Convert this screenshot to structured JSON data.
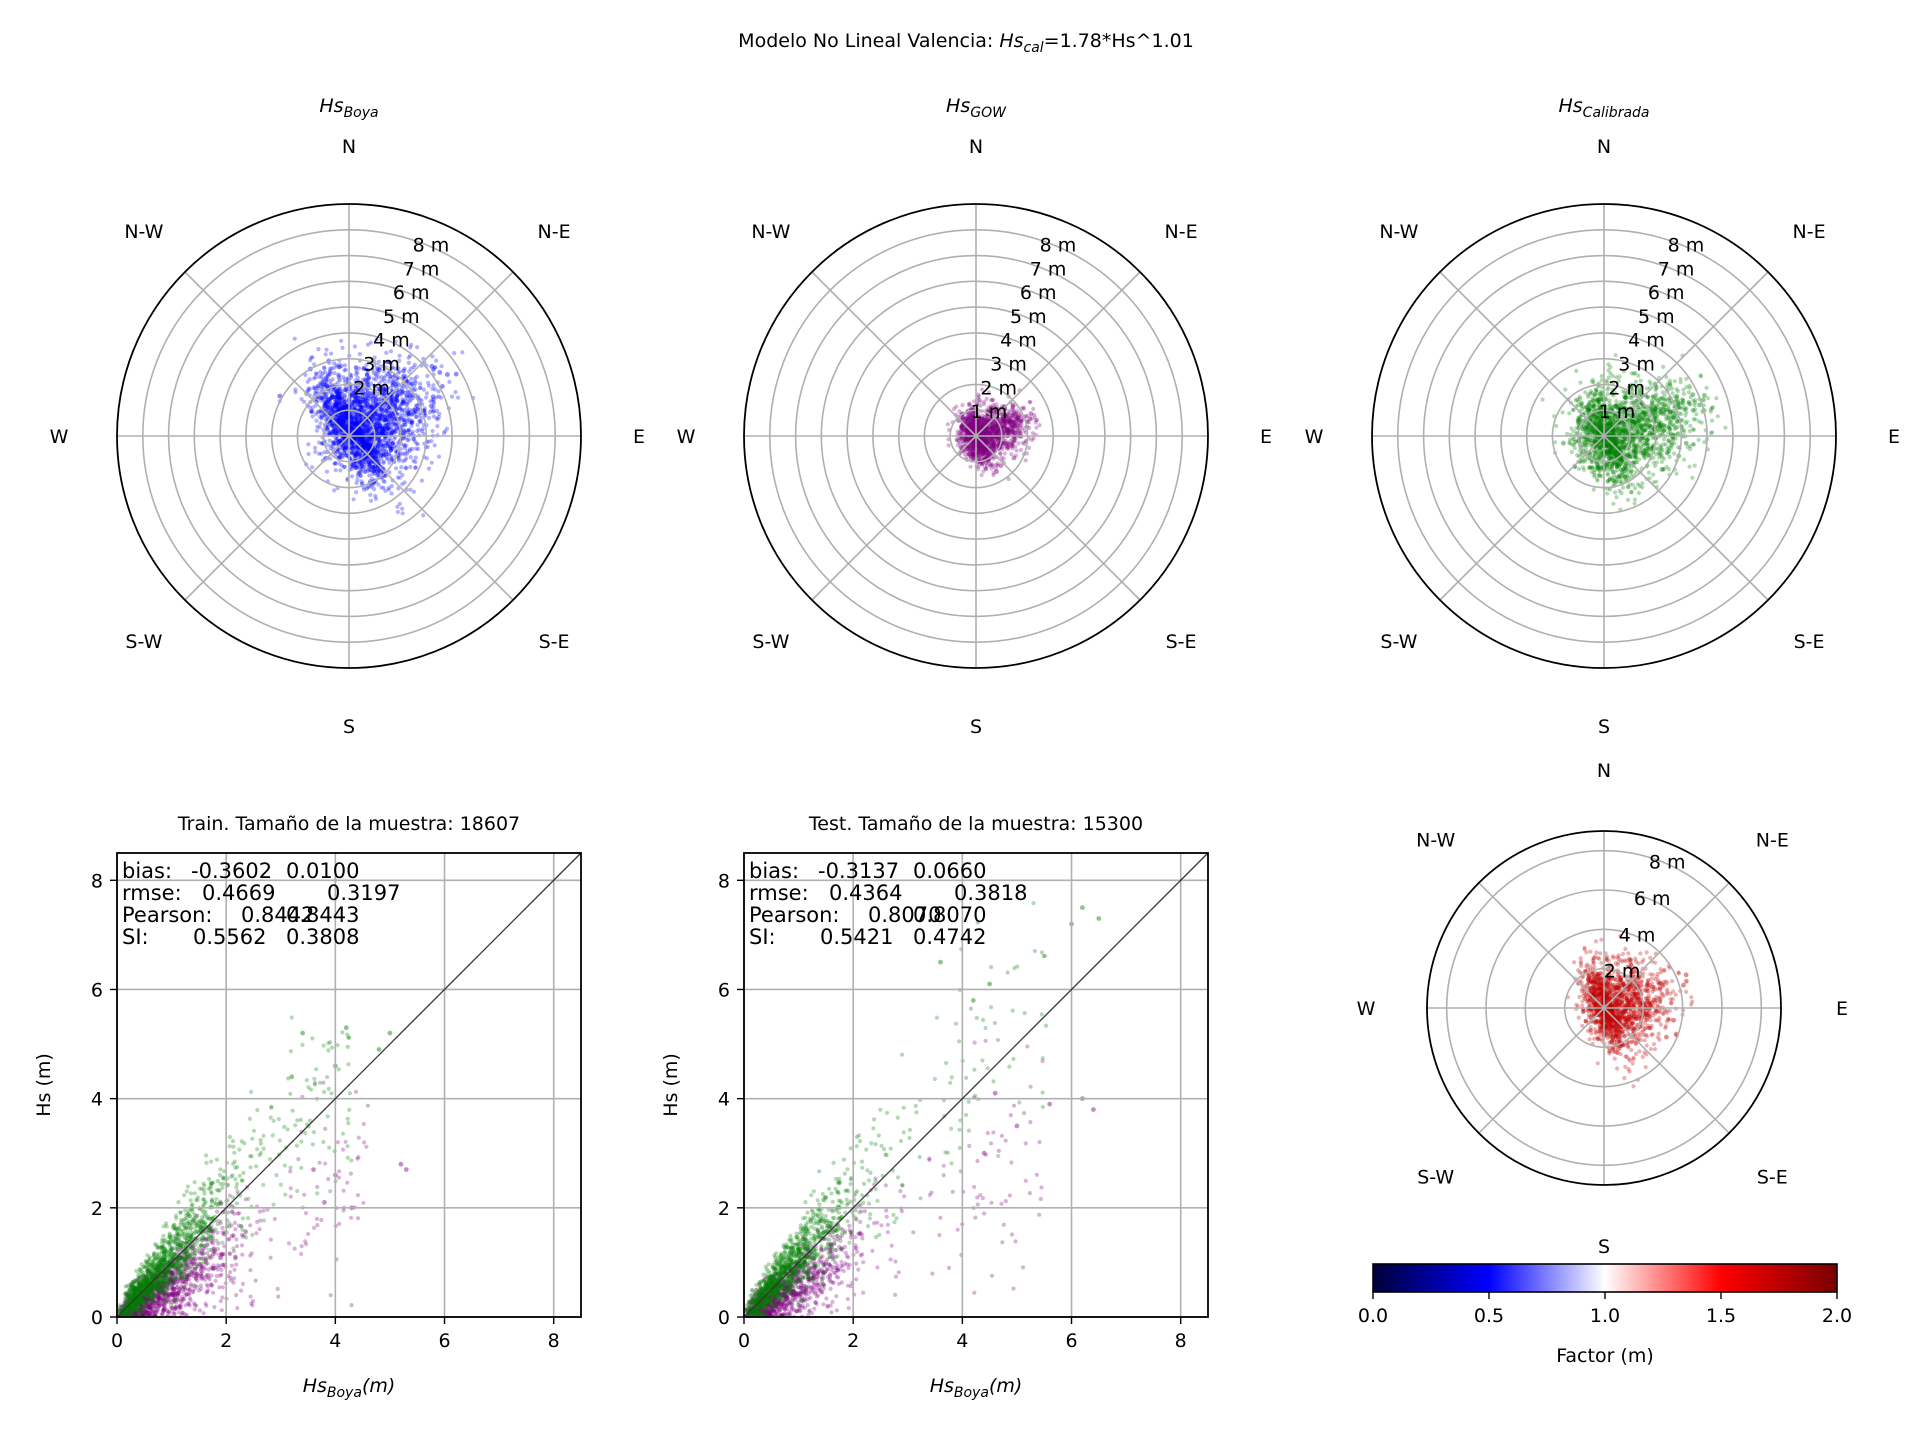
{
  "figure": {
    "title_prefix": "Modelo No Lineal Valencia: ",
    "title_var": "Hs",
    "title_sub": "cal",
    "title_suffix": "=1.78*Hs^1.01"
  },
  "compass": [
    "N",
    "N-E",
    "E",
    "S-E",
    "S",
    "S-W",
    "W",
    "N-W"
  ],
  "colors": {
    "boya": "#0000ff",
    "gow": "#800080",
    "calibrada": "#008000",
    "factor": "#c00000",
    "grid": "#b0b0b0",
    "diag": "#333333"
  },
  "chart_data": [
    {
      "type": "scatter",
      "panel": "polar-boya",
      "projection": "polar",
      "title_var": "Hs",
      "title_sub": "Boya",
      "rlim": [
        0,
        9
      ],
      "r_ticks": [
        1,
        2,
        3,
        4,
        5,
        6,
        7,
        8
      ],
      "r_tick_labels": [
        "",
        "2 m",
        "3 m",
        "4 m",
        "5 m",
        "6 m",
        "7 m",
        "8 m"
      ],
      "color": "#0000ff",
      "cloud": {
        "center_dir_deg": 45,
        "offset_m": 0.55,
        "spread_r": 1.55,
        "spread_t": 1.15,
        "tail_dir_deg": 60,
        "tail_max_m": 5.0,
        "n": 2600
      },
      "points": [
        [
          60,
          4.8
        ],
        [
          58,
          4.5
        ],
        [
          55,
          4.3
        ],
        [
          62,
          4.1
        ],
        [
          50,
          4.2
        ],
        [
          65,
          3.6
        ],
        [
          40,
          3.3
        ],
        [
          70,
          3.4
        ],
        [
          300,
          3.1
        ],
        [
          330,
          3.0
        ]
      ]
    },
    {
      "type": "scatter",
      "panel": "polar-gow",
      "projection": "polar",
      "title_var": "Hs",
      "title_sub": "GOW",
      "rlim": [
        0,
        9
      ],
      "r_ticks": [
        1,
        2,
        3,
        4,
        5,
        6,
        7,
        8
      ],
      "r_tick_labels": [
        "1 m",
        "2 m",
        "3 m",
        "4 m",
        "5 m",
        "6 m",
        "7 m",
        "8 m"
      ],
      "color": "#800080",
      "cloud": {
        "center_dir_deg": 80,
        "offset_m": 0.25,
        "spread_r": 0.95,
        "spread_t": 0.55,
        "tail_dir_deg": 72,
        "tail_max_m": 2.3,
        "n": 1600
      },
      "points": [
        [
          68,
          2.3
        ],
        [
          72,
          2.2
        ],
        [
          75,
          2.1
        ],
        [
          120,
          1.7
        ],
        [
          150,
          1.6
        ],
        [
          140,
          1.5
        ]
      ]
    },
    {
      "type": "scatter",
      "panel": "polar-calibrada",
      "projection": "polar",
      "title_var": "Hs",
      "title_sub": "Calibrada",
      "rlim": [
        0,
        9
      ],
      "r_ticks": [
        1,
        2,
        3,
        4,
        5,
        6,
        7,
        8
      ],
      "r_tick_labels": [
        "1 m",
        "2 m",
        "3 m",
        "4 m",
        "5 m",
        "6 m",
        "7 m",
        "8 m"
      ],
      "color": "#008000",
      "cloud": {
        "center_dir_deg": 80,
        "offset_m": 0.45,
        "spread_r": 1.7,
        "spread_t": 0.95,
        "tail_dir_deg": 72,
        "tail_max_m": 4.2,
        "n": 2000
      },
      "points": [
        [
          72,
          3.9
        ],
        [
          70,
          4.1
        ],
        [
          68,
          4.2
        ],
        [
          65,
          3.8
        ],
        [
          74,
          3.6
        ],
        [
          105,
          3.0
        ],
        [
          120,
          2.6
        ],
        [
          95,
          3.2
        ],
        [
          260,
          1.6
        ],
        [
          350,
          1.4
        ]
      ]
    },
    {
      "type": "scatter",
      "panel": "scatter-train",
      "title": "Train. Tamaño de la muestra: 18607",
      "xlabel_var": "Hs",
      "xlabel_sub": "Boya",
      "xlabel_suffix": "(m)",
      "ylabel": "Hs (m)",
      "xlim": [
        0,
        8.5
      ],
      "ylim": [
        0,
        8.5
      ],
      "xticks": [
        0,
        2,
        4,
        6,
        8
      ],
      "yticks": [
        0,
        2,
        4,
        6,
        8
      ],
      "grid": true,
      "diagonal": true,
      "stats": [
        {
          "label": "bias:",
          "gow": "-0.3602",
          "cal": "0.0100"
        },
        {
          "label": "rmse:",
          "gow": "0.4669",
          "cal": "0.3197"
        },
        {
          "label": "Pearson:",
          "gow": "0.8442",
          "cal": "0.8443"
        },
        {
          "label": "SI:",
          "gow": "0.5562",
          "cal": "0.3808"
        }
      ],
      "series": [
        {
          "color": "#800080",
          "slope": 0.58,
          "x_max": 5.4,
          "n": 1300,
          "points": [
            [
              5.3,
              2.7
            ],
            [
              5.2,
              2.8
            ],
            [
              4.0,
              2.6
            ],
            [
              3.8,
              2.1
            ],
            [
              4.3,
              2.0
            ],
            [
              3.6,
              2.7
            ]
          ]
        },
        {
          "color": "#008000",
          "slope": 1.1,
          "x_max": 5.0,
          "n": 1300,
          "points": [
            [
              5.0,
              5.2
            ],
            [
              4.8,
              4.9
            ],
            [
              4.2,
              5.3
            ],
            [
              3.4,
              5.2
            ],
            [
              3.2,
              4.4
            ],
            [
              4.0,
              4.6
            ]
          ]
        }
      ]
    },
    {
      "type": "scatter",
      "panel": "scatter-test",
      "title": "Test. Tamaño de la muestra: 15300",
      "xlabel_var": "Hs",
      "xlabel_sub": "Boya",
      "xlabel_suffix": "(m)",
      "ylabel": "Hs (m)",
      "xlim": [
        0,
        8.5
      ],
      "ylim": [
        0,
        8.5
      ],
      "xticks": [
        0,
        2,
        4,
        6,
        8
      ],
      "yticks": [
        0,
        2,
        4,
        6,
        8
      ],
      "grid": true,
      "diagonal": true,
      "stats": [
        {
          "label": "bias:",
          "gow": "-0.3137",
          "cal": "0.0660"
        },
        {
          "label": "rmse:",
          "gow": "0.4364",
          "cal": "0.3818"
        },
        {
          "label": "Pearson:",
          "gow": "0.8070",
          "cal": "0.8070"
        },
        {
          "label": "SI:",
          "gow": "0.5421",
          "cal": "0.4742"
        }
      ],
      "series": [
        {
          "color": "#800080",
          "slope": 0.6,
          "x_max": 6.5,
          "n": 1100,
          "points": [
            [
              6.4,
              3.8
            ],
            [
              6.2,
              4.0
            ],
            [
              5.6,
              3.9
            ],
            [
              4.6,
              4.1
            ],
            [
              5.0,
              3.5
            ],
            [
              4.4,
              3.0
            ]
          ]
        },
        {
          "color": "#008000",
          "slope": 1.1,
          "x_max": 6.6,
          "n": 1100,
          "points": [
            [
              6.5,
              7.3
            ],
            [
              6.2,
              7.5
            ],
            [
              6.0,
              7.2
            ],
            [
              4.5,
              6.1
            ],
            [
              3.6,
              6.5
            ],
            [
              4.2,
              5.8
            ]
          ]
        }
      ]
    },
    {
      "type": "scatter",
      "panel": "polar-factor",
      "projection": "polar",
      "rlim": [
        0,
        9
      ],
      "r_ticks": [
        2,
        4,
        6,
        8
      ],
      "r_tick_labels": [
        "2 m",
        "4 m",
        "6 m",
        "8 m"
      ],
      "color": "#c00000",
      "cloud": {
        "center_dir_deg": 80,
        "offset_m": 0.4,
        "spread_r": 1.5,
        "spread_t": 1.2,
        "tail_dir_deg": 70,
        "tail_max_m": 4.5,
        "n": 1600
      },
      "points": [
        [
          72,
          4.4
        ],
        [
          68,
          4.5
        ],
        [
          74,
          4.2
        ],
        [
          110,
          3.9
        ],
        [
          115,
          3.5
        ],
        [
          100,
          3.6
        ]
      ],
      "colorbar": {
        "label": "Factor (m)",
        "range": [
          0,
          2
        ],
        "ticks": [
          0,
          0.5,
          1,
          1.5,
          2
        ],
        "tick_labels": [
          "0.0",
          "0.5",
          "1.0",
          "1.5",
          "2.0"
        ],
        "colormap": [
          "#00003a",
          "#0000ff",
          "#ffffff",
          "#ff0000",
          "#7a0000"
        ]
      }
    }
  ]
}
